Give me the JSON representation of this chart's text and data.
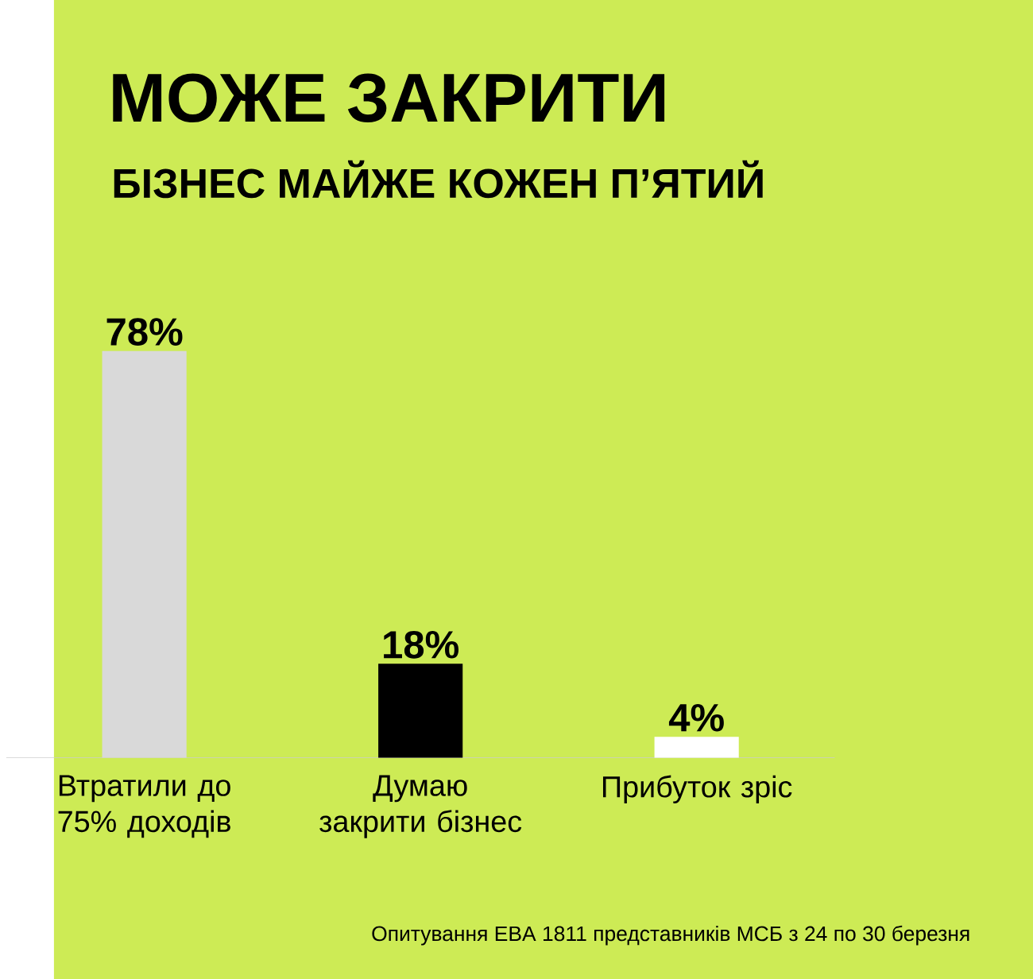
{
  "chart_data": {
    "type": "bar",
    "title": "МОЖЕ ЗАКРИТИ",
    "subtitle": "БІЗНЕС МАЙЖЕ КОЖЕН П’ЯТИЙ",
    "categories": [
      "Втратили до 75% доходів",
      "Думаю закрити бізнес",
      "Прибуток зріс"
    ],
    "values": [
      78,
      18,
      4
    ],
    "colors": [
      "#d9d9d9",
      "#000000",
      "#ffffff"
    ],
    "value_labels": [
      "78%",
      "18%",
      "4%"
    ],
    "annotations": [
      "Опитування EBA 1811  представників МСБ з 24 по 30 березня"
    ]
  }
}
